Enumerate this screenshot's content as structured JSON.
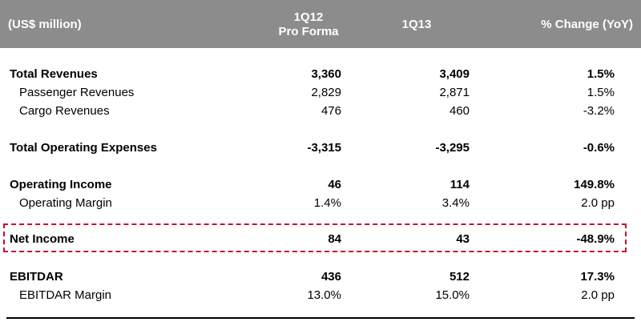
{
  "header": {
    "label": "(US$ million)",
    "col1": "1Q12\nPro Forma",
    "col2": "1Q13",
    "col3": "% Change (YoY)"
  },
  "rows": [
    {
      "label": "Total Revenues",
      "v1": "3,360",
      "v2": "3,409",
      "v3": "1.5%"
    },
    {
      "label": "Passenger Revenues",
      "v1": "2,829",
      "v2": "2,871",
      "v3": "1.5%"
    },
    {
      "label": "Cargo Revenues",
      "v1": "476",
      "v2": "460",
      "v3": "-3.2%"
    },
    {
      "label": "Total Operating Expenses",
      "v1": "-3,315",
      "v2": "-3,295",
      "v3": "-0.6%"
    },
    {
      "label": "Operating Income",
      "v1": "46",
      "v2": "114",
      "v3": "149.8%"
    },
    {
      "label": "Operating Margin",
      "v1": "1.4%",
      "v2": "3.4%",
      "v3": "2.0 pp"
    },
    {
      "label": "Net Income",
      "v1": "84",
      "v2": "43",
      "v3": "-48.9%"
    },
    {
      "label": "EBITDAR",
      "v1": "436",
      "v2": "512",
      "v3": "17.3%"
    },
    {
      "label": "EBITDAR Margin",
      "v1": "13.0%",
      "v2": "15.0%",
      "v3": "2.0 pp"
    }
  ],
  "colors": {
    "header_bg": "#8c8c8c",
    "highlight_border": "#c8102e"
  }
}
